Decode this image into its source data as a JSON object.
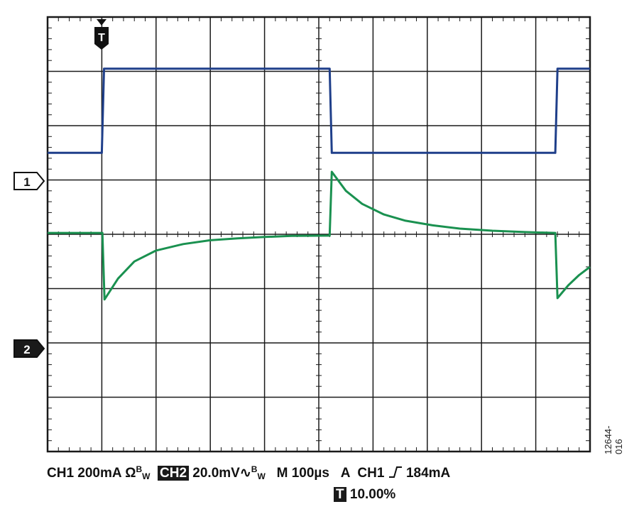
{
  "figure_id": "12644-016",
  "trigger_marker": "T",
  "channel_markers": {
    "ch1": "1",
    "ch2": "2"
  },
  "readout": {
    "ch1_label": "CH1",
    "ch1_scale": "200mA",
    "ch1_coupling": "Ω",
    "ch2_label": "CH2",
    "ch2_scale": "20.0mV",
    "ch2_coupling": "∿",
    "bw_b": "B",
    "bw_w": "W",
    "timebase": "M 100µs",
    "trigger_mode": "A",
    "trigger_source": "CH1",
    "trigger_slope": "rising-edge-icon",
    "trigger_level": "184mA",
    "trigger_pos_label": "T",
    "trigger_pos": "10.00%"
  },
  "colors": {
    "ch1": "#1f3f8a",
    "ch2": "#1a9150",
    "grid": "#1a1a1a"
  },
  "chart_data": {
    "type": "line",
    "grid": {
      "x_divisions": 10,
      "y_divisions": 8,
      "on": true
    },
    "x_unit": "µs",
    "x_range": [
      0,
      1000
    ],
    "series": [
      {
        "name": "CH1",
        "y_unit": "mA",
        "y_range": [
          -800,
          800
        ],
        "points": [
          [
            0,
            300
          ],
          [
            100,
            300
          ],
          [
            104,
            610
          ],
          [
            520,
            610
          ],
          [
            524,
            300
          ],
          [
            936,
            300
          ],
          [
            940,
            610
          ],
          [
            1000,
            610
          ]
        ]
      },
      {
        "name": "CH2",
        "y_unit": "mV",
        "y_range": [
          -80,
          80
        ],
        "points": [
          [
            0,
            0.5
          ],
          [
            101,
            0.5
          ],
          [
            105,
            -24
          ],
          [
            130,
            -16.3
          ],
          [
            160,
            -10
          ],
          [
            200,
            -6
          ],
          [
            250,
            -3.6
          ],
          [
            300,
            -2.2
          ],
          [
            350,
            -1.5
          ],
          [
            400,
            -1
          ],
          [
            450,
            -0.6
          ],
          [
            520,
            -0.5
          ],
          [
            524,
            23
          ],
          [
            550,
            16
          ],
          [
            580,
            11.2
          ],
          [
            620,
            7.3
          ],
          [
            660,
            5
          ],
          [
            710,
            3.3
          ],
          [
            760,
            2.1
          ],
          [
            820,
            1.3
          ],
          [
            880,
            0.8
          ],
          [
            936,
            0.5
          ],
          [
            940,
            -23.5
          ],
          [
            960,
            -18.8
          ],
          [
            980,
            -15
          ],
          [
            1000,
            -12
          ]
        ]
      }
    ]
  }
}
